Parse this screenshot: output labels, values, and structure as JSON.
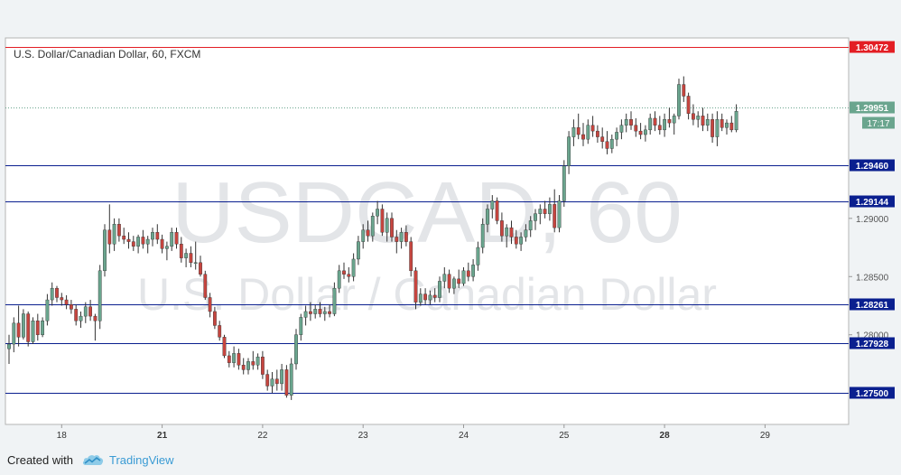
{
  "chart_data": {
    "type": "candlestick",
    "title": "U.S. Dollar/Canadian Dollar, 60, FXCM",
    "watermark": {
      "line1": "USDCAD, 60",
      "line2": "U.S. Dollar / Canadian Dollar"
    },
    "ylim": [
      1.2723,
      1.3055
    ],
    "x_tick_labels": [
      {
        "label": "18",
        "bar": 11
      },
      {
        "label": "21",
        "bar": 32
      },
      {
        "label": "22",
        "bar": 53
      },
      {
        "label": "23",
        "bar": 74
      },
      {
        "label": "24",
        "bar": 95
      },
      {
        "label": "25",
        "bar": 116
      },
      {
        "label": "28",
        "bar": 137
      },
      {
        "label": "29",
        "bar": 158
      }
    ],
    "y_tick_labels": [
      {
        "label": "1.29000",
        "value": 1.29
      },
      {
        "label": "1.28500",
        "value": 1.285
      },
      {
        "label": "1.28000",
        "value": 1.28
      }
    ],
    "levels": [
      {
        "value": 1.30472,
        "label": "1.30472",
        "color": "#e31e24"
      },
      {
        "value": 1.2946,
        "label": "1.29460",
        "color": "#0a1f8f"
      },
      {
        "value": 1.29144,
        "label": "1.29144",
        "color": "#0a1f8f"
      },
      {
        "value": 1.28261,
        "label": "1.28261",
        "color": "#0a1f8f"
      },
      {
        "value": 1.27928,
        "label": "1.27928",
        "color": "#0a1f8f"
      },
      {
        "value": 1.275,
        "label": "1.27500",
        "color": "#0a1f8f"
      }
    ],
    "current_price": {
      "value": 1.29951,
      "label": "1.29951",
      "countdown": "17:17",
      "color": "#6aa58e"
    },
    "colors": {
      "up": "#6aa58e",
      "down": "#c6453f",
      "wick": "#333333"
    },
    "ohlc": [
      [
        1.2788,
        1.28,
        1.2775,
        1.2792
      ],
      [
        1.2792,
        1.2815,
        1.2785,
        1.281
      ],
      [
        1.281,
        1.2825,
        1.279,
        1.2798
      ],
      [
        1.2798,
        1.2822,
        1.2796,
        1.2818
      ],
      [
        1.2818,
        1.282,
        1.279,
        1.2794
      ],
      [
        1.2794,
        1.2815,
        1.2792,
        1.2812
      ],
      [
        1.2812,
        1.2818,
        1.2795,
        1.28
      ],
      [
        1.28,
        1.2815,
        1.2798,
        1.2812
      ],
      [
        1.2812,
        1.2835,
        1.2808,
        1.283
      ],
      [
        1.283,
        1.2845,
        1.2825,
        1.284
      ],
      [
        1.284,
        1.2842,
        1.2828,
        1.2832
      ],
      [
        1.2832,
        1.2836,
        1.2825,
        1.283
      ],
      [
        1.283,
        1.2834,
        1.2822,
        1.2826
      ],
      [
        1.2826,
        1.283,
        1.2818,
        1.2822
      ],
      [
        1.2822,
        1.2826,
        1.2808,
        1.2812
      ],
      [
        1.2812,
        1.282,
        1.2806,
        1.2816
      ],
      [
        1.2816,
        1.2828,
        1.281,
        1.2824
      ],
      [
        1.2824,
        1.283,
        1.2812,
        1.2816
      ],
      [
        1.2816,
        1.2818,
        1.2795,
        1.2812
      ],
      [
        1.2812,
        1.286,
        1.2805,
        1.2855
      ],
      [
        1.2855,
        1.2895,
        1.285,
        1.289
      ],
      [
        1.289,
        1.2912,
        1.287,
        1.2878
      ],
      [
        1.2878,
        1.29,
        1.2872,
        1.2895
      ],
      [
        1.2895,
        1.29,
        1.288,
        1.2885
      ],
      [
        1.2885,
        1.2892,
        1.2878,
        1.2882
      ],
      [
        1.2882,
        1.2888,
        1.2874,
        1.288
      ],
      [
        1.288,
        1.2885,
        1.2872,
        1.2876
      ],
      [
        1.2876,
        1.2886,
        1.287,
        1.2884
      ],
      [
        1.2884,
        1.289,
        1.2874,
        1.2878
      ],
      [
        1.2878,
        1.2885,
        1.287,
        1.2882
      ],
      [
        1.2882,
        1.2892,
        1.2876,
        1.2888
      ],
      [
        1.2888,
        1.2895,
        1.2878,
        1.2882
      ],
      [
        1.2882,
        1.2886,
        1.287,
        1.2874
      ],
      [
        1.2874,
        1.288,
        1.2864,
        1.2876
      ],
      [
        1.2876,
        1.2892,
        1.2872,
        1.2888
      ],
      [
        1.2888,
        1.2892,
        1.2874,
        1.2878
      ],
      [
        1.2878,
        1.2884,
        1.2862,
        1.2866
      ],
      [
        1.2866,
        1.2874,
        1.2858,
        1.287
      ],
      [
        1.287,
        1.2876,
        1.2858,
        1.2862
      ],
      [
        1.2862,
        1.288,
        1.2856,
        1.2862
      ],
      [
        1.2862,
        1.2868,
        1.285,
        1.2852
      ],
      [
        1.2852,
        1.2855,
        1.283,
        1.2832
      ],
      [
        1.2832,
        1.2836,
        1.2815,
        1.282
      ],
      [
        1.282,
        1.2824,
        1.2805,
        1.2808
      ],
      [
        1.2808,
        1.2812,
        1.2795,
        1.2798
      ],
      [
        1.2798,
        1.28,
        1.278,
        1.2782
      ],
      [
        1.2782,
        1.2786,
        1.2772,
        1.2776
      ],
      [
        1.2776,
        1.279,
        1.2772,
        1.2784
      ],
      [
        1.2784,
        1.2788,
        1.277,
        1.2774
      ],
      [
        1.2774,
        1.278,
        1.2766,
        1.277
      ],
      [
        1.277,
        1.278,
        1.2766,
        1.2777
      ],
      [
        1.2777,
        1.2786,
        1.277,
        1.2774
      ],
      [
        1.2774,
        1.2784,
        1.277,
        1.2781
      ],
      [
        1.2781,
        1.2786,
        1.2762,
        1.2766
      ],
      [
        1.2766,
        1.277,
        1.2752,
        1.2756
      ],
      [
        1.2756,
        1.2768,
        1.275,
        1.2762
      ],
      [
        1.2762,
        1.277,
        1.2752,
        1.2758
      ],
      [
        1.2758,
        1.2775,
        1.2752,
        1.277
      ],
      [
        1.277,
        1.2774,
        1.2746,
        1.2748
      ],
      [
        1.2748,
        1.278,
        1.2744,
        1.2775
      ],
      [
        1.2775,
        1.2805,
        1.277,
        1.28
      ],
      [
        1.28,
        1.2818,
        1.2795,
        1.2815
      ],
      [
        1.2815,
        1.2825,
        1.2808,
        1.282
      ],
      [
        1.282,
        1.2828,
        1.2812,
        1.2818
      ],
      [
        1.2818,
        1.2826,
        1.2814,
        1.2822
      ],
      [
        1.2822,
        1.2828,
        1.2815,
        1.2818
      ],
      [
        1.2818,
        1.2824,
        1.2812,
        1.282
      ],
      [
        1.282,
        1.2826,
        1.2815,
        1.2818
      ],
      [
        1.2818,
        1.2845,
        1.2816,
        1.284
      ],
      [
        1.284,
        1.286,
        1.2836,
        1.2855
      ],
      [
        1.2855,
        1.2862,
        1.2848,
        1.2852
      ],
      [
        1.2852,
        1.2858,
        1.2845,
        1.285
      ],
      [
        1.285,
        1.287,
        1.2846,
        1.2865
      ],
      [
        1.2865,
        1.2885,
        1.286,
        1.288
      ],
      [
        1.288,
        1.2895,
        1.2874,
        1.289
      ],
      [
        1.289,
        1.2898,
        1.288,
        1.2885
      ],
      [
        1.2885,
        1.2905,
        1.288,
        1.2902
      ],
      [
        1.2902,
        1.2915,
        1.2895,
        1.2908
      ],
      [
        1.2908,
        1.2912,
        1.2885,
        1.2888
      ],
      [
        1.2888,
        1.2905,
        1.288,
        1.29
      ],
      [
        1.29,
        1.2905,
        1.288,
        1.2884
      ],
      [
        1.2884,
        1.289,
        1.287,
        1.288
      ],
      [
        1.288,
        1.2892,
        1.2874,
        1.2888
      ],
      [
        1.2888,
        1.2894,
        1.2876,
        1.288
      ],
      [
        1.288,
        1.2884,
        1.285,
        1.2855
      ],
      [
        1.2855,
        1.2858,
        1.2822,
        1.2828
      ],
      [
        1.2828,
        1.284,
        1.2825,
        1.2835
      ],
      [
        1.2835,
        1.284,
        1.2826,
        1.283
      ],
      [
        1.283,
        1.2838,
        1.2826,
        1.2834
      ],
      [
        1.2834,
        1.284,
        1.2828,
        1.2832
      ],
      [
        1.2832,
        1.285,
        1.2828,
        1.2846
      ],
      [
        1.2846,
        1.2858,
        1.284,
        1.2852
      ],
      [
        1.2852,
        1.2856,
        1.2836,
        1.284
      ],
      [
        1.284,
        1.285,
        1.2835,
        1.2848
      ],
      [
        1.2848,
        1.2856,
        1.284,
        1.2844
      ],
      [
        1.2844,
        1.2858,
        1.2842,
        1.2855
      ],
      [
        1.2855,
        1.2862,
        1.2846,
        1.285
      ],
      [
        1.285,
        1.2865,
        1.2846,
        1.286
      ],
      [
        1.286,
        1.288,
        1.2855,
        1.2875
      ],
      [
        1.2875,
        1.29,
        1.287,
        1.2895
      ],
      [
        1.2895,
        1.2912,
        1.2888,
        1.2908
      ],
      [
        1.2908,
        1.292,
        1.29,
        1.2915
      ],
      [
        1.2915,
        1.2918,
        1.2895,
        1.2898
      ],
      [
        1.2898,
        1.2905,
        1.288,
        1.2885
      ],
      [
        1.2885,
        1.2895,
        1.2875,
        1.2892
      ],
      [
        1.2892,
        1.2898,
        1.2878,
        1.2884
      ],
      [
        1.2884,
        1.289,
        1.2874,
        1.2878
      ],
      [
        1.2878,
        1.2888,
        1.2872,
        1.2884
      ],
      [
        1.2884,
        1.2895,
        1.288,
        1.289
      ],
      [
        1.289,
        1.2902,
        1.2884,
        1.2898
      ],
      [
        1.2898,
        1.2908,
        1.289,
        1.2904
      ],
      [
        1.2904,
        1.2912,
        1.2895,
        1.2908
      ],
      [
        1.2908,
        1.2915,
        1.29,
        1.2904
      ],
      [
        1.2904,
        1.2918,
        1.2898,
        1.2912
      ],
      [
        1.2912,
        1.2925,
        1.2888,
        1.2892
      ],
      [
        1.2892,
        1.292,
        1.2888,
        1.2915
      ],
      [
        1.2915,
        1.295,
        1.291,
        1.2945
      ],
      [
        1.2945,
        1.2975,
        1.2938,
        1.297
      ],
      [
        1.297,
        1.2985,
        1.2962,
        1.2978
      ],
      [
        1.2978,
        1.299,
        1.2968,
        1.2972
      ],
      [
        1.2972,
        1.2982,
        1.2962,
        1.2968
      ],
      [
        1.2968,
        1.2985,
        1.2964,
        1.298
      ],
      [
        1.298,
        1.2988,
        1.297,
        1.2975
      ],
      [
        1.2975,
        1.298,
        1.2965,
        1.297
      ],
      [
        1.297,
        1.2978,
        1.296,
        1.2966
      ],
      [
        1.2966,
        1.2975,
        1.2955,
        1.296
      ],
      [
        1.296,
        1.2972,
        1.2956,
        1.2968
      ],
      [
        1.2968,
        1.2978,
        1.2962,
        1.2974
      ],
      [
        1.2974,
        1.2985,
        1.2968,
        1.298
      ],
      [
        1.298,
        1.299,
        1.2974,
        1.2985
      ],
      [
        1.2985,
        1.2992,
        1.2976,
        1.298
      ],
      [
        1.298,
        1.2986,
        1.297,
        1.2975
      ],
      [
        1.2975,
        1.2982,
        1.2968,
        1.2972
      ],
      [
        1.2972,
        1.298,
        1.2966,
        1.2976
      ],
      [
        1.2976,
        1.299,
        1.2972,
        1.2986
      ],
      [
        1.2986,
        1.2992,
        1.2975,
        1.298
      ],
      [
        1.298,
        1.2988,
        1.2972,
        1.2976
      ],
      [
        1.2976,
        1.299,
        1.297,
        1.2985
      ],
      [
        1.2985,
        1.2995,
        1.2978,
        1.2982
      ],
      [
        1.2982,
        1.299,
        1.2972,
        1.2988
      ],
      [
        1.2988,
        1.302,
        1.2985,
        1.3015
      ],
      [
        1.3015,
        1.3022,
        1.3,
        1.3005
      ],
      [
        1.3005,
        1.3008,
        1.2985,
        1.299
      ],
      [
        1.299,
        1.2998,
        1.298,
        1.2985
      ],
      [
        1.2985,
        1.2992,
        1.2978,
        1.2988
      ],
      [
        1.2988,
        1.2995,
        1.2975,
        1.298
      ],
      [
        1.298,
        1.299,
        1.2975,
        1.2985
      ],
      [
        1.2985,
        1.299,
        1.2965,
        1.297
      ],
      [
        1.297,
        1.2992,
        1.2962,
        1.2985
      ],
      [
        1.2985,
        1.299,
        1.2975,
        1.2978
      ],
      [
        1.2978,
        1.2985,
        1.2972,
        1.2982
      ],
      [
        1.2982,
        1.2988,
        1.2974,
        1.2976
      ],
      [
        1.2976,
        1.2998,
        1.2974,
        1.2992
      ]
    ]
  },
  "footer": {
    "created_with": "Created with",
    "brand": "TradingView"
  },
  "icons": {
    "brand_icon": "tradingview-cloud-icon"
  }
}
